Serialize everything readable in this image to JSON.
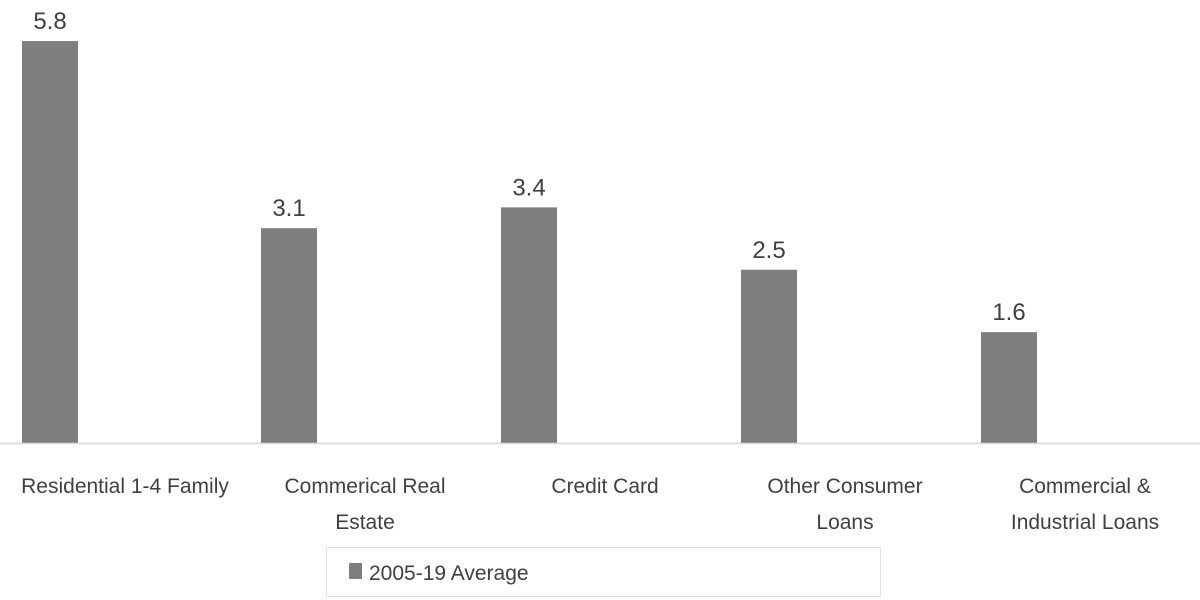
{
  "chart_data": {
    "type": "bar",
    "title": "",
    "xlabel": "",
    "ylabel": "",
    "ylim": [
      0,
      6.4
    ],
    "grid": false,
    "legend_position": "bottom",
    "categories": [
      [
        "Residential 1-4 Family"
      ],
      [
        "Commerical Real",
        "Estate"
      ],
      [
        "Credit Card"
      ],
      [
        "Other Consumer",
        "Loans"
      ],
      [
        "Commercial &",
        "Industrial Loans"
      ]
    ],
    "series": [
      {
        "name": "2005-19 Average",
        "values": [
          5.8,
          3.1,
          3.4,
          2.5,
          1.6
        ],
        "labels": [
          "5.8",
          "3.1",
          "3.4",
          "2.5",
          "1.6"
        ],
        "color": "#7f7f7f"
      }
    ]
  }
}
